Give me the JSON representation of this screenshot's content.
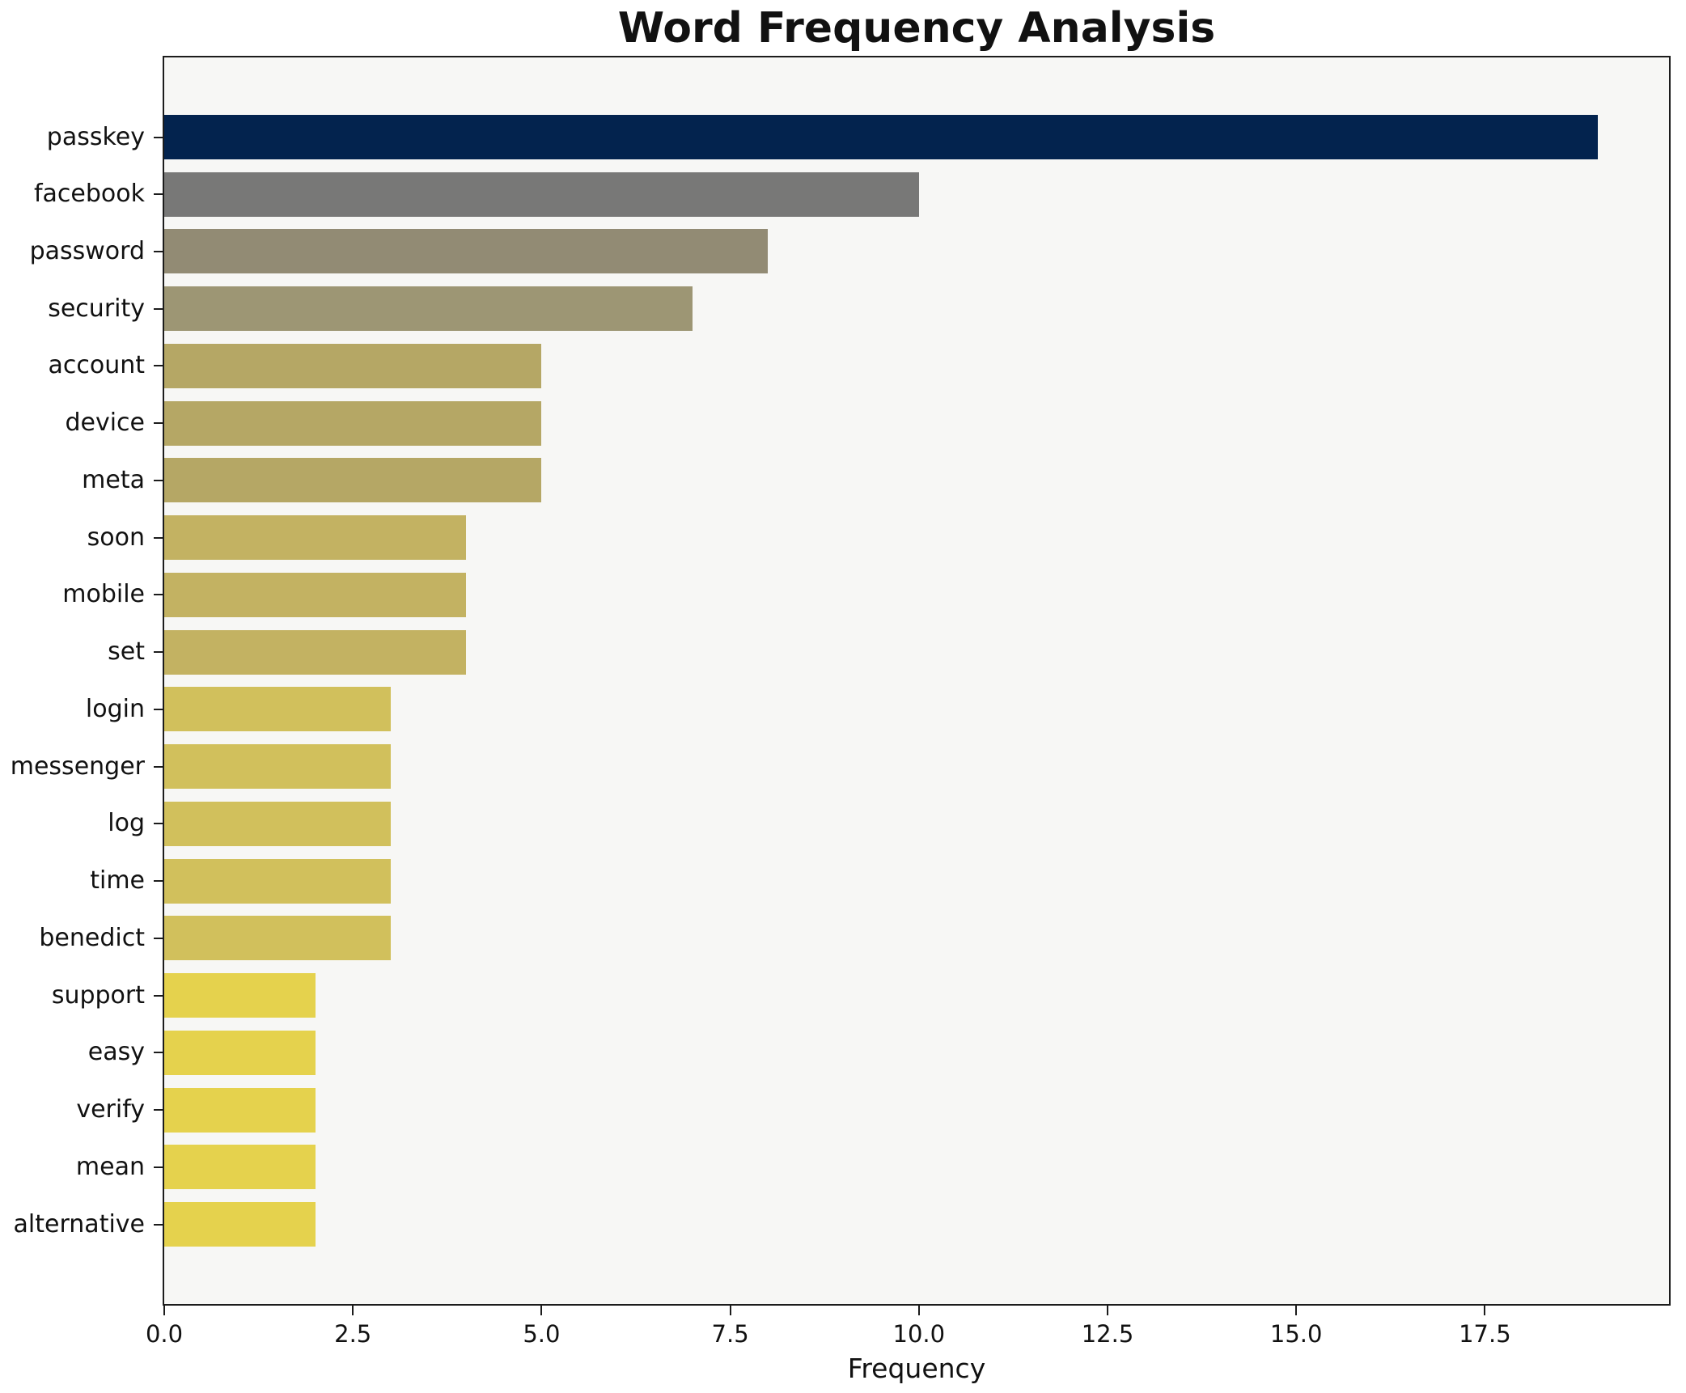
{
  "chart_data": {
    "type": "bar",
    "orientation": "horizontal",
    "title": "Word Frequency Analysis",
    "xlabel": "Frequency",
    "ylabel": "",
    "categories": [
      "passkey",
      "facebook",
      "password",
      "security",
      "account",
      "device",
      "meta",
      "soon",
      "mobile",
      "set",
      "login",
      "messenger",
      "log",
      "time",
      "benedict",
      "support",
      "easy",
      "verify",
      "mean",
      "alternative"
    ],
    "values": [
      19,
      10,
      8,
      7,
      5,
      5,
      5,
      4,
      4,
      4,
      3,
      3,
      3,
      3,
      3,
      2,
      2,
      2,
      2,
      2
    ],
    "bar_colors": [
      "#03234e",
      "#787877",
      "#928b74",
      "#9d9674",
      "#b5a765",
      "#b5a765",
      "#b5a765",
      "#c3b262",
      "#c3b262",
      "#c3b262",
      "#d1c05c",
      "#d1c05c",
      "#d1c05c",
      "#d1c05c",
      "#d1c05c",
      "#e5d24d",
      "#e5d24d",
      "#e5d24d",
      "#e5d24d",
      "#e5d24d"
    ],
    "xlim": [
      0,
      19.94
    ],
    "x_tick_values": [
      0,
      2.5,
      5,
      7.5,
      10,
      12.5,
      15,
      17.5
    ],
    "x_tick_labels": [
      "0.0",
      "2.5",
      "5.0",
      "7.5",
      "10.0",
      "12.5",
      "15.0",
      "17.5"
    ],
    "grid": false,
    "legend_position": "none",
    "plot_bg": "#f7f7f5",
    "figure_bg": "#ffffff",
    "colormap": "cividis-reversed-by-value"
  }
}
